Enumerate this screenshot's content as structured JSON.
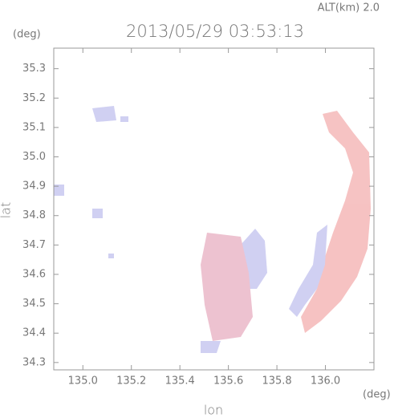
{
  "chart_data": {
    "type": "heatmap",
    "title": "2013/05/29 03:53:13",
    "subtitle": "ALT(km) 2.0",
    "x_label": "lon",
    "y_label": "lat",
    "x_unit": "(deg)",
    "y_unit": "(deg)",
    "xlim": [
      134.88,
      136.2
    ],
    "ylim": [
      34.275,
      35.37
    ],
    "xticks": [
      {
        "value": 135,
        "label": "135.0"
      },
      135.2,
      135.4,
      135.6,
      135.8,
      {
        "value": 136,
        "label": "136.0"
      }
    ],
    "yticks": [
      34.3,
      34.4,
      34.5,
      34.6,
      34.7,
      34.8,
      34.9,
      {
        "value": 35,
        "label": "35.0"
      },
      35.1,
      35.2,
      35.3
    ]
  }
}
